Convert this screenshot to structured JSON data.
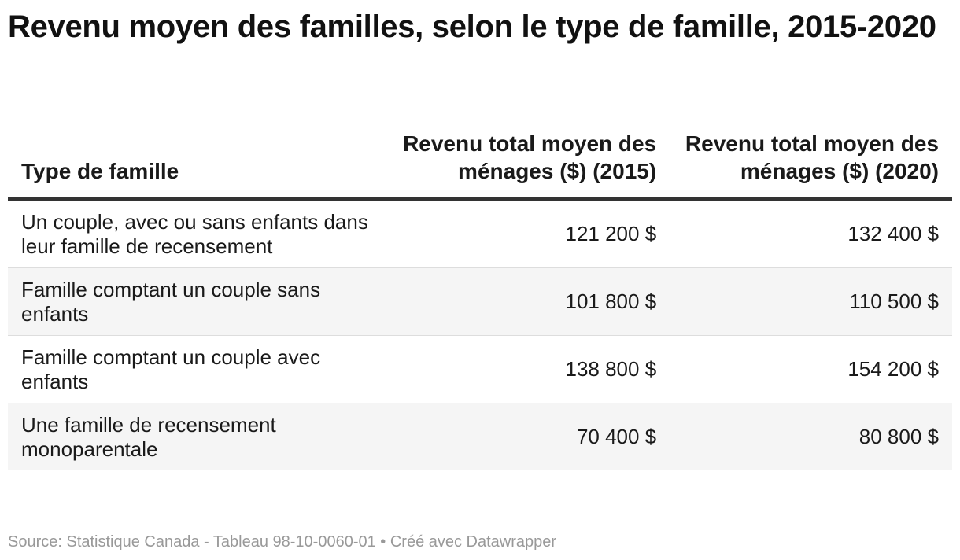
{
  "chart_data": {
    "type": "table",
    "title": "Revenu moyen des familles, selon le type de famille, 2015-2020",
    "columns": [
      "Type de famille",
      "Revenu total moyen des ménages ($) (2015)",
      "Revenu total moyen des ménages ($) (2020)"
    ],
    "rows": [
      {
        "type": "Un couple, avec ou sans enfants dans leur famille de recensement",
        "v2015": 121200,
        "v2020": 132400,
        "v2015_label": "121 200 $",
        "v2020_label": "132 400 $"
      },
      {
        "type": "Famille comptant un couple sans enfants",
        "v2015": 101800,
        "v2020": 110500,
        "v2015_label": "101 800 $",
        "v2020_label": "110 500 $"
      },
      {
        "type": "Famille comptant un couple avec enfants",
        "v2015": 138800,
        "v2020": 154200,
        "v2015_label": "138 800 $",
        "v2020_label": "154 200 $"
      },
      {
        "type": "Une famille de recensement monoparentale",
        "v2015": 70400,
        "v2020": 80800,
        "v2015_label": "70 400 $",
        "v2020_label": "80 800 $"
      }
    ],
    "source": "Source: Statistique Canada - Tableau 98-10-0060-01 • Créé avec Datawrapper"
  }
}
